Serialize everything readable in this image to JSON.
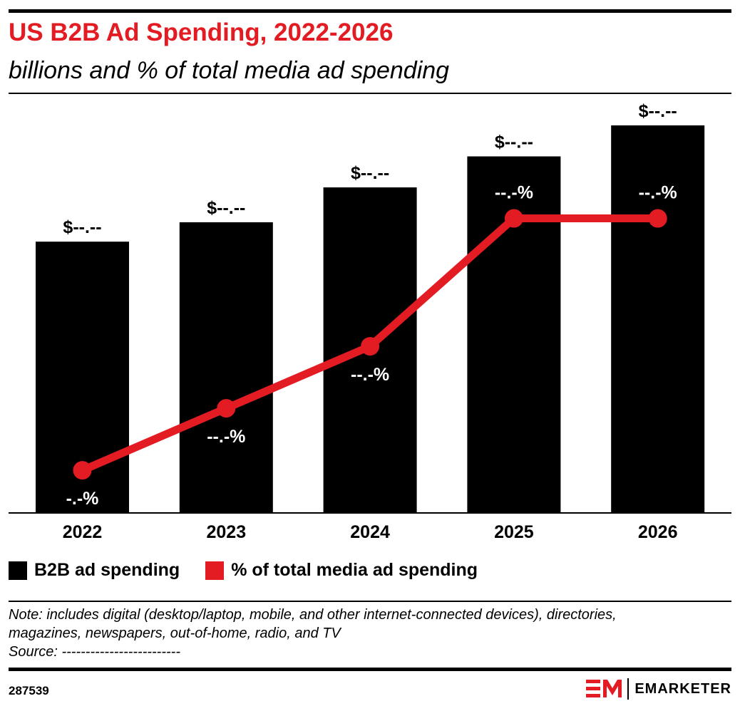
{
  "title": "US B2B Ad Spending, 2022-2026",
  "subtitle": "billions and % of total media ad spending",
  "chart_data": {
    "type": "bar+line",
    "categories": [
      "2022",
      "2023",
      "2024",
      "2025",
      "2026"
    ],
    "series": [
      {
        "name": "B2B ad spending",
        "type": "bar",
        "color": "#000000",
        "values_relative": [
          70,
          75,
          84,
          92,
          100
        ],
        "labels": [
          "$--.--",
          "$--.--",
          "$--.--",
          "$--.--",
          "$--.--"
        ]
      },
      {
        "name": "% of total media ad spending",
        "type": "line",
        "color": "#e31b23",
        "values_relative": [
          11,
          27,
          43,
          76,
          76
        ],
        "labels": [
          "-.-%",
          "--.-%",
          "--.-%",
          "--.-%",
          "--.-%"
        ]
      }
    ],
    "ylim": [
      0,
      100
    ],
    "grid": false,
    "legend": "bottom-left"
  },
  "note": "Note: includes digital (desktop/laptop, mobile, and other internet-connected devices), directories, magazines, newspapers, out-of-home, radio, and TV",
  "source": "Source: -------------------------",
  "chart_id": "287539",
  "logo": "EMARKETER"
}
